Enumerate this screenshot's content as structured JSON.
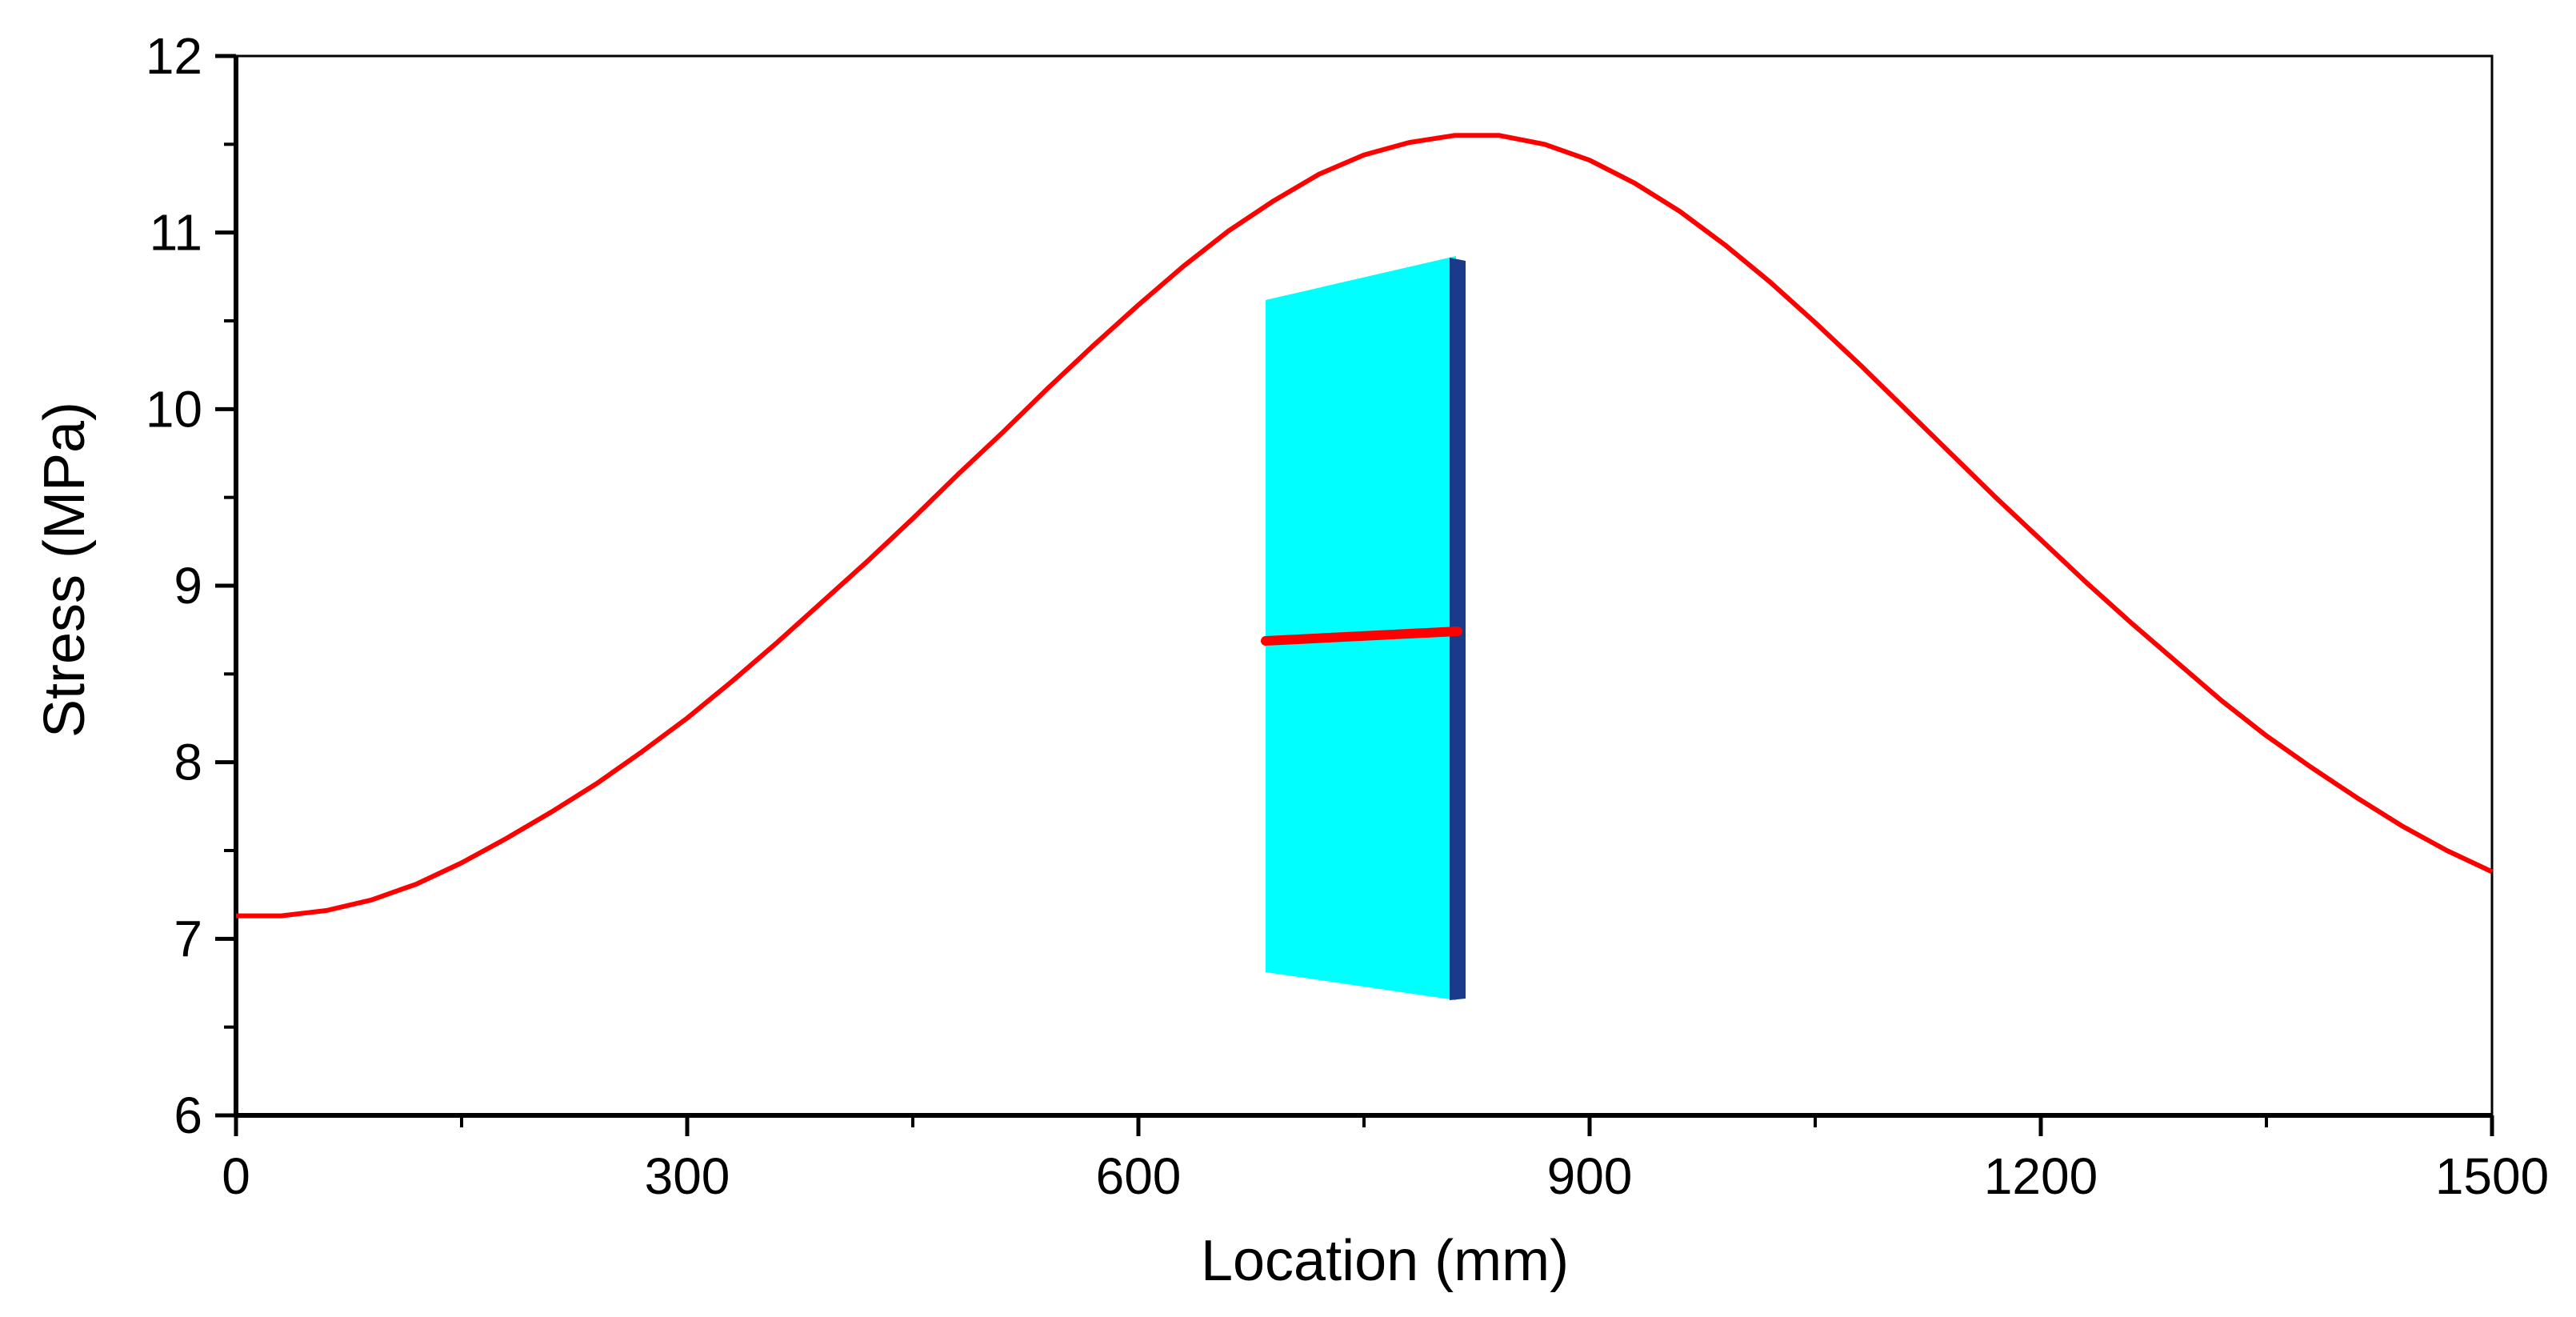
{
  "chart_data": {
    "type": "line",
    "title": "",
    "xlabel": "Location (mm)",
    "ylabel": "Stress (MPa)",
    "xlim": [
      0,
      1500
    ],
    "ylim": [
      6,
      12
    ],
    "x_ticks": [
      0,
      300,
      600,
      900,
      1200,
      1500
    ],
    "x_tick_labels": [
      "0",
      "300",
      "600",
      "900",
      "1200",
      "1500"
    ],
    "y_ticks": [
      6,
      7,
      8,
      9,
      10,
      11,
      12
    ],
    "y_tick_labels": [
      "6",
      "7",
      "8",
      "9",
      "10",
      "11",
      "12"
    ],
    "grid": false,
    "legend": "none",
    "series": [
      {
        "color": "#ff0000",
        "x": [
          0,
          30,
          60,
          90,
          120,
          150,
          180,
          210,
          240,
          270,
          300,
          330,
          360,
          390,
          420,
          450,
          480,
          510,
          540,
          570,
          600,
          630,
          660,
          690,
          720,
          750,
          780,
          810,
          840,
          870,
          900,
          930,
          960,
          990,
          1020,
          1050,
          1080,
          1110,
          1140,
          1170,
          1200,
          1230,
          1260,
          1290,
          1320,
          1350,
          1380,
          1410,
          1440,
          1470,
          1500
        ],
        "y": [
          7.13,
          7.13,
          7.16,
          7.22,
          7.31,
          7.43,
          7.57,
          7.72,
          7.88,
          8.06,
          8.25,
          8.46,
          8.68,
          8.91,
          9.14,
          9.38,
          9.63,
          9.87,
          10.12,
          10.36,
          10.59,
          10.81,
          11.01,
          11.18,
          11.33,
          11.44,
          11.51,
          11.55,
          11.55,
          11.5,
          11.41,
          11.28,
          11.12,
          10.93,
          10.72,
          10.49,
          10.25,
          10.0,
          9.75,
          9.5,
          9.26,
          9.02,
          8.79,
          8.57,
          8.35,
          8.15,
          7.97,
          7.8,
          7.64,
          7.5,
          7.38
        ]
      }
    ]
  },
  "inset": {
    "panel_color": "#00ffff",
    "edge_color": "#1a3a8a",
    "line_color": "#ff0000"
  }
}
